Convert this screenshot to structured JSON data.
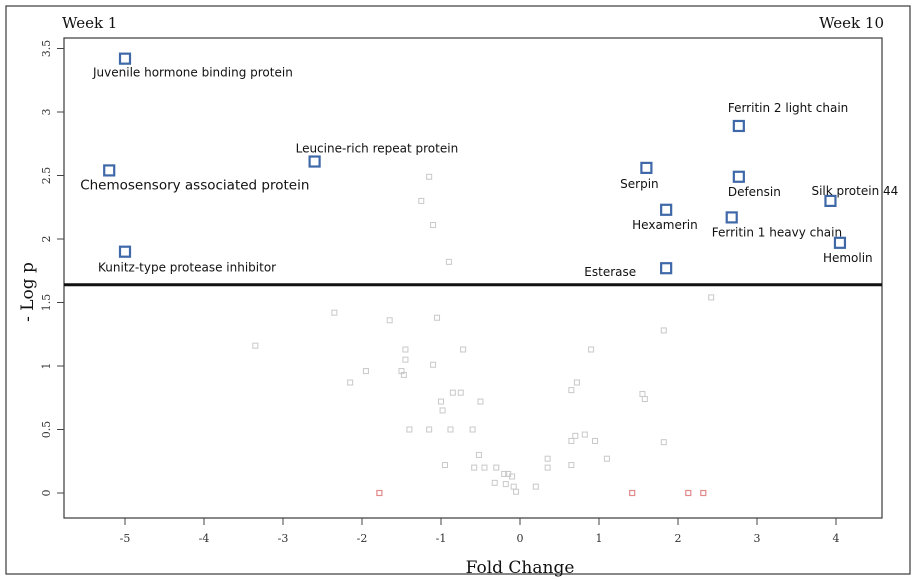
{
  "corner_left": "Week 1",
  "corner_right": "Week 10",
  "chart_data": {
    "type": "scatter",
    "title": "",
    "xlabel": "Fold Change",
    "ylabel": "- Log p",
    "xlim": [
      -5.7,
      4.5
    ],
    "ylim": [
      -0.2,
      3.6
    ],
    "x_ticks": [
      -5,
      -4,
      -3,
      -2,
      -1,
      0,
      1,
      2,
      3,
      4
    ],
    "y_ticks": [
      0,
      0.5,
      1,
      1.5,
      2,
      2.5,
      3,
      3.5
    ],
    "threshold_line": 1.64,
    "significant_points": [
      {
        "label": "Juvenile hormone binding protein",
        "x": -5.0,
        "y": 3.42
      },
      {
        "label": "Chemosensory associated protein",
        "x": -5.2,
        "y": 2.54
      },
      {
        "label": "Leucine-rich repeat protein",
        "x": -2.6,
        "y": 2.61
      },
      {
        "label": "Kunitz-type protease inhibitor",
        "x": -5.0,
        "y": 1.9
      },
      {
        "label": "Serpin",
        "x": 1.6,
        "y": 2.56
      },
      {
        "label": "Hexamerin",
        "x": 1.85,
        "y": 2.23
      },
      {
        "label": "Esterase",
        "x": 1.85,
        "y": 1.77
      },
      {
        "label": "Ferritin 2 light chain",
        "x": 2.77,
        "y": 2.89
      },
      {
        "label": "Defensin",
        "x": 2.77,
        "y": 2.49
      },
      {
        "label": "Ferritin 1 heavy chain",
        "x": 2.68,
        "y": 2.17
      },
      {
        "label": "Silk protein 44",
        "x": 3.93,
        "y": 2.3
      },
      {
        "label": "Hemolin",
        "x": 4.05,
        "y": 1.97
      }
    ],
    "nonsignificant_points": [
      [
        -1.15,
        2.49
      ],
      [
        -1.25,
        2.3
      ],
      [
        -1.1,
        2.11
      ],
      [
        -0.9,
        1.82
      ],
      [
        -2.35,
        1.42
      ],
      [
        -1.65,
        1.36
      ],
      [
        -1.05,
        1.38
      ],
      [
        -3.35,
        1.16
      ],
      [
        -1.45,
        1.13
      ],
      [
        -1.45,
        1.05
      ],
      [
        -1.5,
        0.96
      ],
      [
        -1.47,
        0.93
      ],
      [
        -1.95,
        0.96
      ],
      [
        -2.15,
        0.87
      ],
      [
        -1.1,
        1.01
      ],
      [
        -0.72,
        1.13
      ],
      [
        -1.0,
        0.72
      ],
      [
        -0.98,
        0.65
      ],
      [
        -0.85,
        0.79
      ],
      [
        -0.75,
        0.79
      ],
      [
        -0.5,
        0.72
      ],
      [
        -1.4,
        0.5
      ],
      [
        -1.15,
        0.5
      ],
      [
        -0.88,
        0.5
      ],
      [
        -0.6,
        0.5
      ],
      [
        -0.52,
        0.3
      ],
      [
        -0.45,
        0.2
      ],
      [
        -0.58,
        0.2
      ],
      [
        -0.95,
        0.22
      ],
      [
        -0.3,
        0.2
      ],
      [
        -0.2,
        0.15
      ],
      [
        -0.15,
        0.15
      ],
      [
        -0.1,
        0.13
      ],
      [
        -0.32,
        0.08
      ],
      [
        -0.18,
        0.07
      ],
      [
        -0.08,
        0.05
      ],
      [
        -0.05,
        0.01
      ],
      [
        0.2,
        0.05
      ],
      [
        0.35,
        0.27
      ],
      [
        0.35,
        0.2
      ],
      [
        0.65,
        0.41
      ],
      [
        0.7,
        0.45
      ],
      [
        0.65,
        0.22
      ],
      [
        0.82,
        0.46
      ],
      [
        0.72,
        0.87
      ],
      [
        0.65,
        0.81
      ],
      [
        0.9,
        1.13
      ],
      [
        0.95,
        0.41
      ],
      [
        1.1,
        0.27
      ],
      [
        1.55,
        0.78
      ],
      [
        1.58,
        0.74
      ],
      [
        1.82,
        1.28
      ],
      [
        1.82,
        0.4
      ],
      [
        2.42,
        1.54
      ]
    ],
    "marker_points": [
      [
        -1.78,
        0.0
      ],
      [
        1.42,
        0.0
      ],
      [
        2.13,
        0.0
      ],
      [
        2.32,
        0.0
      ]
    ],
    "colors": {
      "significant": "#3f68a8",
      "nonsignificant": "#c8c8c8",
      "marker": "#e28a8a",
      "threshold": "#111111"
    }
  }
}
